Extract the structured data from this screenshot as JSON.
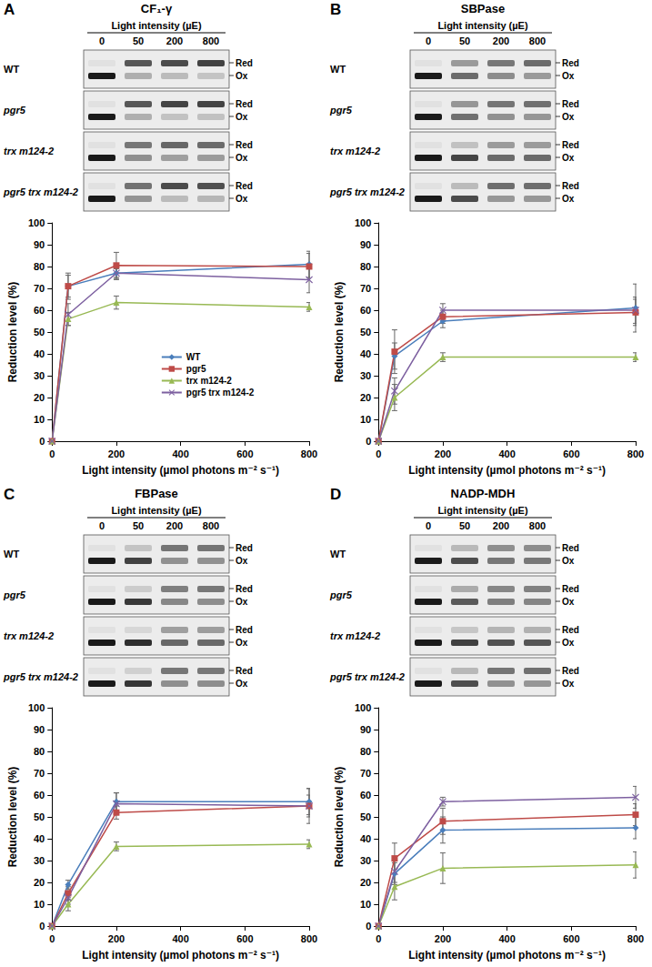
{
  "chart_data": [
    {
      "panel": "A",
      "title": "CF₁-γ",
      "type": "line",
      "blot": {
        "header": "Light intensity (µE)",
        "lanes": [
          "0",
          "50",
          "200",
          "800"
        ],
        "rows": [
          "WT",
          "pgr5",
          "trx m124-2",
          "pgr5 trx m124-2"
        ],
        "bands": [
          "Red",
          "Ox"
        ]
      },
      "x_label": "Light intensity (µmol photons m⁻² s⁻¹)",
      "y_label": "Reduction level (%)",
      "x": [
        0,
        50,
        200,
        800
      ],
      "xlim": [
        0,
        800
      ],
      "xticks": [
        0,
        200,
        400,
        600,
        800
      ],
      "ylim": [
        0,
        100
      ],
      "yticks": [
        0,
        10,
        20,
        30,
        40,
        50,
        60,
        70,
        80,
        90,
        100
      ],
      "legend": "center",
      "series": [
        {
          "name": "WT",
          "color": "#4a7ebb",
          "marker": "diamond",
          "values": [
            0,
            71,
            77,
            81
          ],
          "errors": [
            0,
            5,
            3,
            6
          ]
        },
        {
          "name": "pgr5",
          "color": "#be4b48",
          "marker": "square",
          "values": [
            0,
            71,
            80.5,
            80
          ],
          "errors": [
            0,
            6,
            6,
            6
          ]
        },
        {
          "name": "trx m124-2",
          "color": "#98b954",
          "marker": "triangle",
          "values": [
            0,
            56,
            63.5,
            61.5
          ],
          "errors": [
            0,
            3,
            3,
            2
          ]
        },
        {
          "name": "pgr5 trx m124-2",
          "color": "#7d60a0",
          "marker": "x",
          "values": [
            0,
            58,
            77,
            74
          ],
          "errors": [
            0,
            5,
            2,
            6
          ]
        }
      ]
    },
    {
      "panel": "B",
      "title": "SBPase",
      "type": "line",
      "blot": {
        "header": "Light intensity (µE)",
        "lanes": [
          "0",
          "50",
          "200",
          "800"
        ],
        "rows": [
          "WT",
          "pgr5",
          "trx m124-2",
          "pgr5 trx m124-2"
        ],
        "bands": [
          "Red",
          "Ox"
        ]
      },
      "x_label": "Light intensity (µmol photons m⁻² s⁻¹)",
      "y_label": "Reduction level (%)",
      "x": [
        0,
        50,
        200,
        800
      ],
      "xlim": [
        0,
        800
      ],
      "xticks": [
        0,
        200,
        400,
        600,
        800
      ],
      "ylim": [
        0,
        100
      ],
      "yticks": [
        0,
        10,
        20,
        30,
        40,
        50,
        60,
        70,
        80,
        90,
        100
      ],
      "series": [
        {
          "name": "WT",
          "color": "#4a7ebb",
          "marker": "diamond",
          "values": [
            0,
            39,
            55,
            61
          ],
          "errors": [
            0,
            6,
            3,
            11
          ]
        },
        {
          "name": "pgr5",
          "color": "#be4b48",
          "marker": "square",
          "values": [
            0,
            41,
            57,
            59
          ],
          "errors": [
            0,
            10,
            3,
            6
          ]
        },
        {
          "name": "trx m124-2",
          "color": "#98b954",
          "marker": "triangle",
          "values": [
            0,
            20,
            38.5,
            38.5
          ],
          "errors": [
            0,
            6,
            2,
            2
          ]
        },
        {
          "name": "pgr5 trx m124-2",
          "color": "#7d60a0",
          "marker": "x",
          "values": [
            0,
            23,
            60,
            60
          ],
          "errors": [
            0,
            6,
            3,
            6
          ]
        }
      ]
    },
    {
      "panel": "C",
      "title": "FBPase",
      "type": "line",
      "blot": {
        "header": "Light intensity (µE)",
        "lanes": [
          "0",
          "50",
          "200",
          "800"
        ],
        "rows": [
          "WT",
          "pgr5",
          "trx m124-2",
          "pgr5 trx m124-2"
        ],
        "bands": [
          "Red",
          "Ox"
        ]
      },
      "x_label": "Light intensity (µmol photons m⁻² s⁻¹)",
      "y_label": "Reduction level (%)",
      "x": [
        0,
        50,
        200,
        800
      ],
      "xlim": [
        0,
        800
      ],
      "xticks": [
        0,
        200,
        400,
        600,
        800
      ],
      "ylim": [
        0,
        100
      ],
      "yticks": [
        0,
        10,
        20,
        30,
        40,
        50,
        60,
        70,
        80,
        90,
        100
      ],
      "series": [
        {
          "name": "WT",
          "color": "#4a7ebb",
          "marker": "diamond",
          "values": [
            0,
            19,
            57,
            57
          ],
          "errors": [
            0,
            2,
            4,
            6
          ]
        },
        {
          "name": "pgr5",
          "color": "#be4b48",
          "marker": "square",
          "values": [
            0,
            15,
            52,
            55
          ],
          "errors": [
            0,
            3,
            3,
            5
          ]
        },
        {
          "name": "trx m124-2",
          "color": "#98b954",
          "marker": "triangle",
          "values": [
            0,
            10,
            36.5,
            37.5
          ],
          "errors": [
            0,
            3,
            2,
            2
          ]
        },
        {
          "name": "pgr5 trx m124-2",
          "color": "#7d60a0",
          "marker": "x",
          "values": [
            0,
            13,
            56,
            55
          ],
          "errors": [
            0,
            3,
            5,
            8
          ]
        }
      ]
    },
    {
      "panel": "D",
      "title": "NADP-MDH",
      "type": "line",
      "blot": {
        "header": "Light intensity (µE)",
        "lanes": [
          "0",
          "50",
          "200",
          "800"
        ],
        "rows": [
          "WT",
          "pgr5",
          "trx m124-2",
          "pgr5 trx m124-2"
        ],
        "bands": [
          "Red",
          "Ox"
        ]
      },
      "x_label": "Light intensity (µmol photons m⁻² s⁻¹)",
      "y_label": "Reduction level (%)",
      "x": [
        0,
        50,
        200,
        800
      ],
      "xlim": [
        0,
        800
      ],
      "xticks": [
        0,
        200,
        400,
        600,
        800
      ],
      "ylim": [
        0,
        100
      ],
      "yticks": [
        0,
        10,
        20,
        30,
        40,
        50,
        60,
        70,
        80,
        90,
        100
      ],
      "series": [
        {
          "name": "WT",
          "color": "#4a7ebb",
          "marker": "diamond",
          "values": [
            0,
            24,
            44,
            45
          ],
          "errors": [
            0,
            5,
            6,
            5
          ]
        },
        {
          "name": "pgr5",
          "color": "#be4b48",
          "marker": "square",
          "values": [
            0,
            31,
            48,
            51
          ],
          "errors": [
            0,
            7,
            6,
            5
          ]
        },
        {
          "name": "trx m124-2",
          "color": "#98b954",
          "marker": "triangle",
          "values": [
            0,
            18,
            26.5,
            28
          ],
          "errors": [
            0,
            6,
            7,
            6
          ]
        },
        {
          "name": "pgr5 trx m124-2",
          "color": "#7d60a0",
          "marker": "x",
          "values": [
            0,
            25,
            57,
            59
          ],
          "errors": [
            0,
            5,
            2,
            5
          ]
        }
      ]
    }
  ]
}
